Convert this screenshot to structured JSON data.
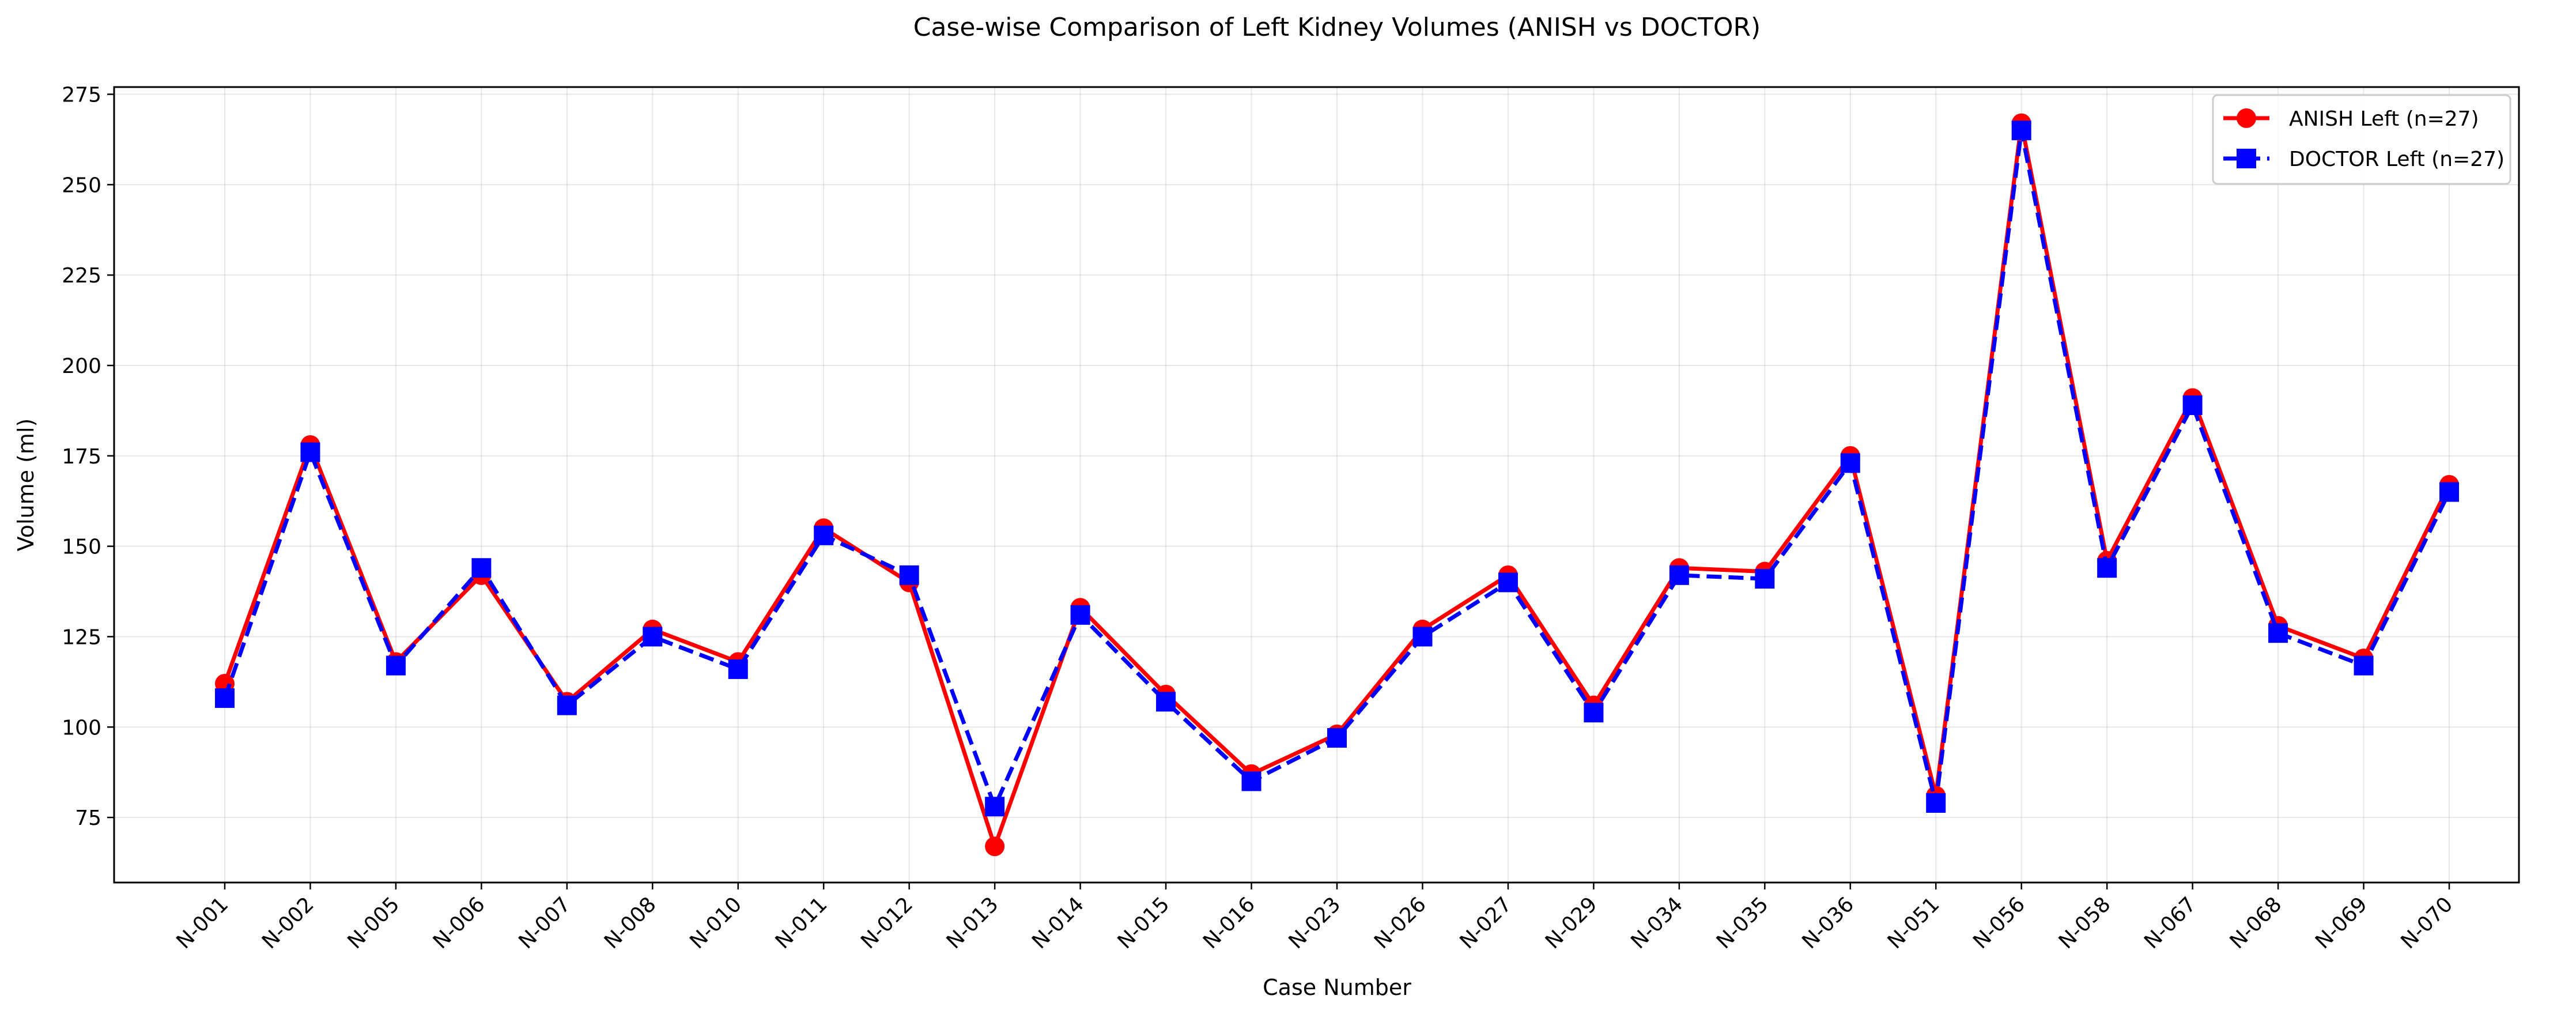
{
  "chart_data": {
    "type": "line",
    "title": "Case-wise Comparison of Left Kidney Volumes (ANISH vs DOCTOR)",
    "xlabel": "Case Number",
    "ylabel": "Volume (ml)",
    "categories": [
      "N-001",
      "N-002",
      "N-005",
      "N-006",
      "N-007",
      "N-008",
      "N-010",
      "N-011",
      "N-012",
      "N-013",
      "N-014",
      "N-015",
      "N-016",
      "N-023",
      "N-026",
      "N-027",
      "N-029",
      "N-034",
      "N-035",
      "N-036",
      "N-051",
      "N-056",
      "N-058",
      "N-067",
      "N-068",
      "N-069",
      "N-070"
    ],
    "ylim": [
      57,
      277
    ],
    "yticks": [
      75,
      100,
      125,
      150,
      175,
      200,
      225,
      250,
      275
    ],
    "grid": true,
    "legend_position": "top-right",
    "series": [
      {
        "name": "ANISH Left (n=27)",
        "color": "#ff0000",
        "marker": "circle",
        "linestyle": "solid",
        "values": [
          112,
          178,
          118,
          142,
          107,
          127,
          118,
          155,
          140,
          67,
          133,
          109,
          87,
          98,
          127,
          142,
          106,
          144,
          143,
          175,
          81,
          267,
          146,
          191,
          128,
          119,
          167
        ]
      },
      {
        "name": "DOCTOR Left (n=27)",
        "color": "#0000ff",
        "marker": "square",
        "linestyle": "dashed",
        "values": [
          108,
          176,
          117,
          144,
          106,
          125,
          116,
          153,
          142,
          78,
          131,
          107,
          85,
          97,
          125,
          140,
          104,
          142,
          141,
          173,
          79,
          265,
          144,
          189,
          126,
          117,
          165
        ]
      }
    ]
  }
}
